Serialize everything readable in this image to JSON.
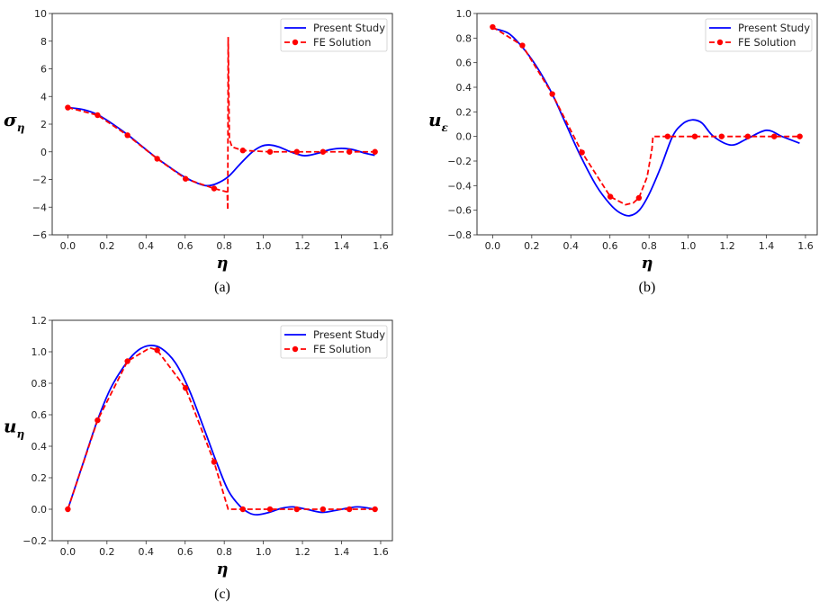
{
  "colors": {
    "present": "#0000ff",
    "fe": "#ff0000",
    "axis": "#333333"
  },
  "chart_data": [
    {
      "type": "line",
      "caption": "(a)",
      "xlabel": "η",
      "ylabel": "σ",
      "ylabel_sub": "η",
      "xlim": [
        -0.08,
        1.66
      ],
      "ylim": [
        -6,
        10
      ],
      "xticks": [
        0.0,
        0.2,
        0.4,
        0.6,
        0.8,
        1.0,
        1.2,
        1.4,
        1.6
      ],
      "xtick_labels": [
        "0.0",
        "0.2",
        "0.4",
        "0.6",
        "0.8",
        "1.0",
        "1.2",
        "1.4",
        "1.6"
      ],
      "yticks": [
        -6,
        -4,
        -2,
        0,
        2,
        4,
        6,
        8,
        10
      ],
      "ytick_labels": [
        "−6",
        "−4",
        "−2",
        "0",
        "2",
        "4",
        "6",
        "8",
        "10"
      ],
      "legend": {
        "placement": "top-right",
        "entries": [
          "Present Study",
          "FE Solution"
        ]
      },
      "series": [
        {
          "name": "Present Study",
          "style": "solid",
          "points": [
            [
              0,
              3.2
            ],
            [
              0.08,
              3.05
            ],
            [
              0.15,
              2.7
            ],
            [
              0.22,
              2.1
            ],
            [
              0.3,
              1.3
            ],
            [
              0.375,
              0.45
            ],
            [
              0.45,
              -0.4
            ],
            [
              0.53,
              -1.2
            ],
            [
              0.6,
              -1.85
            ],
            [
              0.66,
              -2.25
            ],
            [
              0.71,
              -2.45
            ],
            [
              0.76,
              -2.3
            ],
            [
              0.82,
              -1.8
            ],
            [
              0.88,
              -0.9
            ],
            [
              0.94,
              -0.05
            ],
            [
              0.99,
              0.4
            ],
            [
              1.03,
              0.5
            ],
            [
              1.08,
              0.35
            ],
            [
              1.14,
              0.0
            ],
            [
              1.21,
              -0.28
            ],
            [
              1.28,
              -0.1
            ],
            [
              1.34,
              0.15
            ],
            [
              1.4,
              0.25
            ],
            [
              1.46,
              0.15
            ],
            [
              1.52,
              -0.1
            ],
            [
              1.57,
              -0.25
            ]
          ]
        },
        {
          "name": "FE Solution",
          "style": "dashed",
          "points": [
            [
              0,
              3.2
            ],
            [
              0.152,
              2.65
            ],
            [
              0.305,
              1.2
            ],
            [
              0.457,
              -0.5
            ],
            [
              0.602,
              -1.95
            ],
            [
              0.748,
              -2.65
            ],
            [
              0.815,
              -2.9
            ],
            [
              0.818,
              -4.2
            ],
            [
              0.82,
              8.3
            ],
            [
              0.826,
              0.9
            ],
            [
              0.84,
              0.35
            ],
            [
              0.895,
              0.1
            ],
            [
              1.034,
              0
            ],
            [
              1.171,
              0
            ],
            [
              1.305,
              0
            ],
            [
              1.44,
              0
            ],
            [
              1.571,
              0
            ]
          ],
          "markers": [
            [
              0,
              3.2
            ],
            [
              0.152,
              2.65
            ],
            [
              0.305,
              1.2
            ],
            [
              0.457,
              -0.5
            ],
            [
              0.602,
              -1.95
            ],
            [
              0.748,
              -2.65
            ],
            [
              0.895,
              0.1
            ],
            [
              1.034,
              0
            ],
            [
              1.171,
              0
            ],
            [
              1.305,
              0
            ],
            [
              1.44,
              0
            ],
            [
              1.571,
              0
            ]
          ]
        }
      ]
    },
    {
      "type": "line",
      "caption": "(b)",
      "xlabel": "η",
      "ylabel": "u",
      "ylabel_sub": "ε",
      "xlim": [
        -0.08,
        1.66
      ],
      "ylim": [
        -0.8,
        1.0
      ],
      "xticks": [
        0.0,
        0.2,
        0.4,
        0.6,
        0.8,
        1.0,
        1.2,
        1.4,
        1.6
      ],
      "xtick_labels": [
        "0.0",
        "0.2",
        "0.4",
        "0.6",
        "0.8",
        "1.0",
        "1.2",
        "1.4",
        "1.6"
      ],
      "yticks": [
        -0.8,
        -0.6,
        -0.4,
        -0.2,
        0.0,
        0.2,
        0.4,
        0.6,
        0.8,
        1.0
      ],
      "ytick_labels": [
        "−0.8",
        "−0.6",
        "−0.4",
        "−0.2",
        "0.0",
        "0.2",
        "0.4",
        "0.6",
        "0.8",
        "1.0"
      ],
      "legend": {
        "placement": "top-right",
        "entries": [
          "Present Study",
          "FE Solution"
        ]
      },
      "series": [
        {
          "name": "Present Study",
          "style": "solid",
          "points": [
            [
              0,
              0.88
            ],
            [
              0.08,
              0.84
            ],
            [
              0.15,
              0.73
            ],
            [
              0.22,
              0.58
            ],
            [
              0.3,
              0.36
            ],
            [
              0.375,
              0.1
            ],
            [
              0.45,
              -0.16
            ],
            [
              0.53,
              -0.4
            ],
            [
              0.6,
              -0.55
            ],
            [
              0.65,
              -0.62
            ],
            [
              0.7,
              -0.645
            ],
            [
              0.75,
              -0.6
            ],
            [
              0.8,
              -0.47
            ],
            [
              0.86,
              -0.25
            ],
            [
              0.92,
              0.0
            ],
            [
              0.97,
              0.1
            ],
            [
              1.02,
              0.135
            ],
            [
              1.07,
              0.11
            ],
            [
              1.13,
              0.0
            ],
            [
              1.22,
              -0.07
            ],
            [
              1.3,
              -0.02
            ],
            [
              1.4,
              0.05
            ],
            [
              1.48,
              0.0
            ],
            [
              1.57,
              -0.055
            ]
          ]
        },
        {
          "name": "FE Solution",
          "style": "dashed",
          "points": [
            [
              0,
              0.89
            ],
            [
              0.152,
              0.74
            ],
            [
              0.305,
              0.345
            ],
            [
              0.457,
              -0.13
            ],
            [
              0.602,
              -0.49
            ],
            [
              0.68,
              -0.555
            ],
            [
              0.72,
              -0.54
            ],
            [
              0.748,
              -0.5
            ],
            [
              0.79,
              -0.33
            ],
            [
              0.815,
              -0.1
            ],
            [
              0.82,
              0
            ],
            [
              0.895,
              0
            ],
            [
              1.034,
              0
            ],
            [
              1.171,
              0
            ],
            [
              1.305,
              0
            ],
            [
              1.44,
              0
            ],
            [
              1.571,
              0
            ]
          ],
          "markers": [
            [
              0,
              0.89
            ],
            [
              0.152,
              0.74
            ],
            [
              0.305,
              0.345
            ],
            [
              0.457,
              -0.13
            ],
            [
              0.602,
              -0.49
            ],
            [
              0.748,
              -0.5
            ],
            [
              0.895,
              0
            ],
            [
              1.034,
              0
            ],
            [
              1.171,
              0
            ],
            [
              1.305,
              0
            ],
            [
              1.44,
              0
            ],
            [
              1.571,
              0
            ]
          ]
        }
      ]
    },
    {
      "type": "line",
      "caption": "(c)",
      "xlabel": "η",
      "ylabel": "u",
      "ylabel_sub": "η",
      "xlim": [
        -0.08,
        1.66
      ],
      "ylim": [
        -0.2,
        1.2
      ],
      "xticks": [
        0.0,
        0.2,
        0.4,
        0.6,
        0.8,
        1.0,
        1.2,
        1.4,
        1.6
      ],
      "xtick_labels": [
        "0.0",
        "0.2",
        "0.4",
        "0.6",
        "0.8",
        "1.0",
        "1.2",
        "1.4",
        "1.6"
      ],
      "yticks": [
        -0.2,
        0.0,
        0.2,
        0.4,
        0.6,
        0.8,
        1.0,
        1.2
      ],
      "ytick_labels": [
        "−0.2",
        "0.0",
        "0.2",
        "0.4",
        "0.6",
        "0.8",
        "1.0",
        "1.2"
      ],
      "legend": {
        "placement": "top-right",
        "entries": [
          "Present Study",
          "FE Solution"
        ]
      },
      "series": [
        {
          "name": "Present Study",
          "style": "solid",
          "points": [
            [
              0,
              0
            ],
            [
              0.08,
              0.3
            ],
            [
              0.15,
              0.56
            ],
            [
              0.22,
              0.77
            ],
            [
              0.3,
              0.93
            ],
            [
              0.36,
              1.01
            ],
            [
              0.42,
              1.04
            ],
            [
              0.48,
              1.02
            ],
            [
              0.55,
              0.93
            ],
            [
              0.62,
              0.76
            ],
            [
              0.7,
              0.5
            ],
            [
              0.76,
              0.3
            ],
            [
              0.82,
              0.12
            ],
            [
              0.88,
              0.02
            ],
            [
              0.93,
              -0.025
            ],
            [
              0.97,
              -0.035
            ],
            [
              1.03,
              -0.02
            ],
            [
              1.09,
              0.005
            ],
            [
              1.15,
              0.015
            ],
            [
              1.22,
              0.0
            ],
            [
              1.3,
              -0.02
            ],
            [
              1.38,
              -0.005
            ],
            [
              1.48,
              0.015
            ],
            [
              1.57,
              0.0
            ]
          ]
        },
        {
          "name": "FE Solution",
          "style": "dashed",
          "points": [
            [
              0,
              0
            ],
            [
              0.152,
              0.565
            ],
            [
              0.305,
              0.94
            ],
            [
              0.42,
              1.025
            ],
            [
              0.457,
              1.01
            ],
            [
              0.602,
              0.77
            ],
            [
              0.748,
              0.3
            ],
            [
              0.82,
              0
            ],
            [
              0.895,
              0
            ],
            [
              1.034,
              0
            ],
            [
              1.171,
              0
            ],
            [
              1.305,
              0
            ],
            [
              1.44,
              0
            ],
            [
              1.571,
              0
            ]
          ],
          "markers": [
            [
              0,
              0
            ],
            [
              0.152,
              0.565
            ],
            [
              0.305,
              0.94
            ],
            [
              0.457,
              1.01
            ],
            [
              0.602,
              0.77
            ],
            [
              0.748,
              0.3
            ],
            [
              0.895,
              0
            ],
            [
              1.034,
              0
            ],
            [
              1.171,
              0
            ],
            [
              1.305,
              0
            ],
            [
              1.44,
              0
            ],
            [
              1.571,
              0
            ]
          ]
        }
      ]
    }
  ]
}
